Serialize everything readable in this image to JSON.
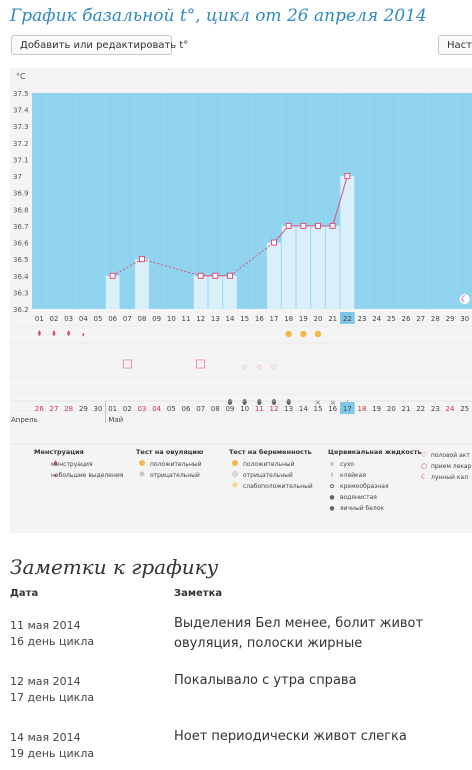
{
  "title": "График базальной t°, цикл от 26 апреля 2014",
  "toolbar": {
    "add_edit_label": "Добавить или редактировать t°",
    "settings_label": "Настр"
  },
  "chart_data": {
    "type": "line",
    "unit": "°C",
    "ylim": [
      36.2,
      37.5
    ],
    "yticks": [
      "37.5",
      "37.4",
      "37.3",
      "37.2",
      "37.1",
      "37",
      "36.9",
      "36.8",
      "36.7",
      "36.6",
      "36.5",
      "36.4",
      "36.3",
      "36.2"
    ],
    "categories": [
      "01",
      "02",
      "03",
      "04",
      "05",
      "06",
      "07",
      "08",
      "09",
      "10",
      "11",
      "12",
      "13",
      "14",
      "15",
      "16",
      "17",
      "18",
      "19",
      "20",
      "21",
      "22",
      "23",
      "24",
      "25",
      "26",
      "27",
      "28",
      "29",
      "30"
    ],
    "values": [
      null,
      null,
      null,
      null,
      null,
      36.4,
      null,
      36.5,
      null,
      null,
      null,
      36.4,
      36.4,
      36.4,
      null,
      null,
      36.6,
      36.7,
      36.7,
      36.7,
      36.7,
      37.0,
      null,
      null,
      null,
      null,
      null,
      null,
      null,
      null
    ],
    "highlight_day": "22",
    "dates_row": [
      "26",
      "27",
      "28",
      "29",
      "30",
      "01",
      "02",
      "03",
      "04",
      "05",
      "06",
      "07",
      "08",
      "09",
      "10",
      "11",
      "12",
      "13",
      "14",
      "15",
      "16",
      "17",
      "18",
      "19",
      "20",
      "21",
      "22",
      "23",
      "24",
      "25"
    ],
    "today_date": "17",
    "month_prev": "Апрель",
    "month_next": "Май",
    "colors": {
      "plot_bg": "#8fd3ef",
      "bar": "#d9f0fb",
      "line": "#e0507a",
      "panel": "#f4f4f4"
    },
    "legend": {
      "menstruation": {
        "title": "Менструация",
        "items": [
          "менструация",
          "небольшие выделения"
        ]
      },
      "ovulation": {
        "title": "Тест на овуляцию",
        "items": [
          "положительный",
          "отрицательный"
        ]
      },
      "pregnancy": {
        "title": "Тест на беременность",
        "items": [
          "положительный",
          "отрицательный",
          "слабоположительный"
        ]
      },
      "cervical": {
        "title": "Цервикальная жидкость",
        "items": [
          "сухо",
          "клейкая",
          "кремообразная",
          "водянистая",
          "яичный белок"
        ]
      },
      "other": {
        "items": [
          "половой акт",
          "прием лекар",
          "лунный кал"
        ]
      }
    }
  },
  "notes": {
    "title": "Заметки к графику",
    "col_date": "Дата",
    "col_note": "Заметка",
    "rows": [
      {
        "date": "11 мая 2014",
        "day": "16 день цикла",
        "text": "Выделения Бел менее, болит живот овуляция, полоски жирные"
      },
      {
        "date": "12 мая 2014",
        "day": "17 день цикла",
        "text": "Покалывало с утра справа"
      },
      {
        "date": "14 мая 2014",
        "day": "19 день цикла",
        "text": "Ноет периодически живот слегка"
      }
    ]
  }
}
